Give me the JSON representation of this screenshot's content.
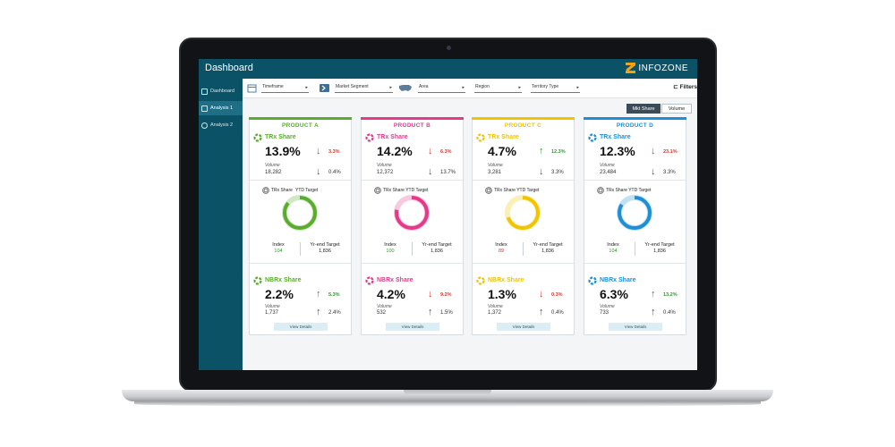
{
  "app": {
    "title": "Dashboard",
    "brand": "INFOZONE",
    "brand_color": "#f6a20f",
    "header_color": "#0c5266"
  },
  "sidebar": {
    "items": [
      {
        "label": "Dashboard",
        "icon": "grid-icon",
        "active": false
      },
      {
        "label": "Analysis 1",
        "icon": "chart-icon",
        "active": true
      },
      {
        "label": "Analysis 2",
        "icon": "gauge-icon",
        "active": false
      }
    ]
  },
  "filters": {
    "timeframe": "Timeframe",
    "market_segment": "Market Segment",
    "area": "Area",
    "region": "Region",
    "territory_type": "Territory Type",
    "filters_button": "Filters"
  },
  "toggle": {
    "mkt_share": "Mkt Share",
    "volume": "Volume",
    "selected": "Mkt Share"
  },
  "labels": {
    "trx_share": "TRx Share",
    "nbrx_share": "NBRx Share",
    "volume": "Volume",
    "trx_share_a": "TRx Share",
    "ytd_target": "YTD Target",
    "trx_share_ytd_target": "TRx Share YTD Target",
    "index": "Index",
    "yr_end_target": "Yr-end Target",
    "view_details": "View Details"
  },
  "cards": [
    {
      "name": "PRODUCT A",
      "color": "#5aac2e",
      "trx": {
        "share": "13.9%",
        "change": "3.3%",
        "change_dir": "down",
        "change_color": "#e53226",
        "volume": "18,282",
        "vol_change": "0.4%",
        "vol_dir": "down"
      },
      "gauge": {
        "fill": 0.86,
        "index": "104",
        "index_color": "#2e9b2e",
        "yr_end_target": "1,836"
      },
      "nbrx": {
        "share": "2.2%",
        "change": "5.3%",
        "change_dir": "up",
        "change_color": "#2e9b2e",
        "volume": "1,737",
        "vol_change": "2.4%",
        "vol_dir": "up"
      }
    },
    {
      "name": "PRODUCT B",
      "color": "#e6398a",
      "trx": {
        "share": "14.2%",
        "change": "6.3%",
        "change_dir": "down",
        "change_color": "#e53226",
        "volume": "12,372",
        "vol_change": "13.7%",
        "vol_dir": "down"
      },
      "gauge": {
        "fill": 0.78,
        "index": "100",
        "index_color": "#2e9b2e",
        "yr_end_target": "1,836"
      },
      "nbrx": {
        "share": "4.2%",
        "change": "9.2%",
        "change_dir": "down",
        "change_color": "#e53226",
        "volume": "532",
        "vol_change": "1.5%",
        "vol_dir": "up"
      }
    },
    {
      "name": "PRODUCT C",
      "color": "#f2c400",
      "trx": {
        "share": "4.7%",
        "change": "12.3%",
        "change_dir": "up",
        "change_color": "#2e9b2e",
        "volume": "3,281",
        "vol_change": "3.3%",
        "vol_dir": "down"
      },
      "gauge": {
        "fill": 0.7,
        "index": "89",
        "index_color": "#e53226",
        "yr_end_target": "1,836"
      },
      "nbrx": {
        "share": "1.3%",
        "change": "0.3%",
        "change_dir": "down",
        "change_color": "#e53226",
        "volume": "1,372",
        "vol_change": "0.4%",
        "vol_dir": "up"
      }
    },
    {
      "name": "PRODUCT D",
      "color": "#1e8fd6",
      "trx": {
        "share": "12.3%",
        "change": "23.1%",
        "change_dir": "down",
        "change_color": "#e53226",
        "volume": "23,484",
        "vol_change": "3.3%",
        "vol_dir": "down"
      },
      "gauge": {
        "fill": 0.84,
        "index": "104",
        "index_color": "#2e9b2e",
        "yr_end_target": "1,836"
      },
      "nbrx": {
        "share": "6.3%",
        "change": "13.2%",
        "change_dir": "up",
        "change_color": "#2e9b2e",
        "volume": "733",
        "vol_change": "0.4%",
        "vol_dir": "up"
      }
    }
  ]
}
